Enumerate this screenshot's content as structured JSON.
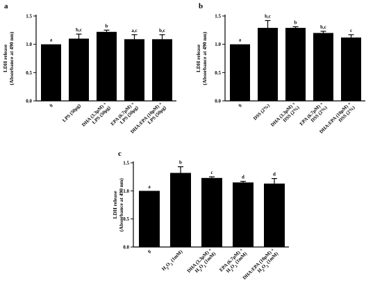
{
  "chart_data": [
    {
      "panel": "a",
      "type": "bar",
      "ylabel_line1": "LDH release",
      "ylabel_line2": "(Absorbance at 490 nm)",
      "ylim": [
        0,
        1.5
      ],
      "yticks": [
        "0.0",
        "0.5",
        "1.0",
        "1.5"
      ],
      "categories": [
        [
          "0"
        ],
        [
          "LPS (50µg)"
        ],
        [
          "DHA (3.3µM) +",
          "LPS (50µg)"
        ],
        [
          "EPA (6.7µM) +",
          "LPS (50µg)"
        ],
        [
          "DHA:EPA (10µM) +",
          "LPS (50µg)"
        ]
      ],
      "values": [
        1.0,
        1.1,
        1.22,
        1.09,
        1.09
      ],
      "errors": [
        0.0,
        0.08,
        0.03,
        0.08,
        0.08
      ],
      "significance": [
        "a",
        "b,c",
        "b",
        "a,c",
        "b,c"
      ]
    },
    {
      "panel": "b",
      "type": "bar",
      "ylabel_line1": "LDH release",
      "ylabel_line2": "(Absorbance at 490 nm)",
      "ylim": [
        0,
        1.5
      ],
      "yticks": [
        "0.0",
        "0.5",
        "1.0",
        "1.5"
      ],
      "categories": [
        [
          "0"
        ],
        [
          "DSS (2%)"
        ],
        [
          "DHA (3.3µM) +",
          "DSS (2%)"
        ],
        [
          "EPA (6.7µM) +",
          "DSS (2%)"
        ],
        [
          "DHA:EPA (10µM) +",
          "DSS (2%)"
        ]
      ],
      "values": [
        1.0,
        1.29,
        1.29,
        1.2,
        1.12
      ],
      "errors": [
        0.0,
        0.13,
        0.02,
        0.03,
        0.05
      ],
      "significance": [
        "a",
        "b,c",
        "b",
        "b,c",
        "c"
      ]
    },
    {
      "panel": "c",
      "type": "bar",
      "ylabel_line1": "LDH release",
      "ylabel_line2": "(Absorbance at 490 nm)",
      "ylim": [
        0,
        1.5
      ],
      "yticks": [
        "0.0",
        "0.5",
        "1.0",
        "1.5"
      ],
      "categories": [
        [
          "0"
        ],
        [
          "H2O2 (1mM)"
        ],
        [
          "DHA (3.3µM) +",
          "H2O2 (1mM)"
        ],
        [
          "EPA (6.7µM) +",
          "H2O2 (1mM)"
        ],
        [
          "DHA:EPA (10µM) +",
          "H2O2 (1mM)"
        ]
      ],
      "values": [
        1.0,
        1.32,
        1.23,
        1.15,
        1.13
      ],
      "errors": [
        0.0,
        0.11,
        0.02,
        0.02,
        0.09
      ],
      "significance": [
        "a",
        "b",
        "c",
        "d",
        "d"
      ]
    }
  ],
  "style": {
    "bar_color": "#000000",
    "axis_color": "#000000"
  }
}
